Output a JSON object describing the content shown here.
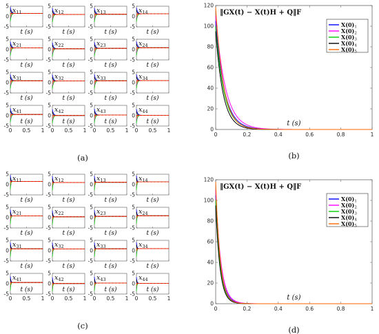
{
  "panels": [
    {
      "caption": "(a)",
      "chart_data": {
        "type": "line",
        "layout": "4x4 small multiples",
        "subplot_labels": [
          [
            "x11",
            "x12",
            "x13",
            "x14"
          ],
          [
            "x21",
            "x22",
            "x23",
            "x24"
          ],
          [
            "x31",
            "x32",
            "x33",
            "x34"
          ],
          [
            "x41",
            "x42",
            "x43",
            "x44"
          ]
        ],
        "xlabel": "t (s)",
        "xlim": [
          0,
          1
        ],
        "ylim": [
          -5,
          5
        ],
        "x_ticks": [
          "0",
          "0.5",
          "1"
        ],
        "y_ticks": [
          "5",
          "0",
          "-5"
        ],
        "subplot_final_value": [
          [
            1.5,
            1.0,
            1.1,
            1.3
          ],
          [
            0.8,
            0.4,
            0.6,
            0.9
          ],
          [
            0.9,
            0.8,
            0.9,
            1.0
          ],
          [
            0.6,
            0.1,
            0.3,
            0.2
          ]
        ],
        "series_colors": [
          "#0000ff",
          "#ff00ff",
          "#00cc00",
          "#000000",
          "#ff6600"
        ],
        "reference_color": "#ff0000",
        "decay_rate": 30
      }
    },
    {
      "caption": "(b)",
      "chart_data": {
        "type": "line",
        "title": "‖GX(t) − X(t)H + Q‖F",
        "xlabel": "t (s)",
        "xlim": [
          0,
          1
        ],
        "ylim": [
          0,
          120
        ],
        "x_ticks": [
          "0",
          "0.2",
          "0.4",
          "0.6",
          "0.8",
          "1"
        ],
        "y_ticks": [
          "0",
          "20",
          "40",
          "60",
          "80",
          "100",
          "120"
        ],
        "legend_position": "top-right",
        "series": [
          {
            "name": "X(0)1",
            "color": "#0000ff",
            "start": 105,
            "rate": 18
          },
          {
            "name": "X(0)2",
            "color": "#ff00ff",
            "start": 110,
            "rate": 16
          },
          {
            "name": "X(0)3",
            "color": "#00cc00",
            "start": 100,
            "rate": 19
          },
          {
            "name": "X(0)4",
            "color": "#000000",
            "start": 95,
            "rate": 21
          },
          {
            "name": "X(0)5",
            "color": "#ff6600",
            "start": 118,
            "rate": 20
          }
        ]
      }
    },
    {
      "caption": "(c)",
      "chart_data": {
        "type": "line",
        "layout": "4x4 small multiples",
        "subplot_labels": [
          [
            "x11",
            "x12",
            "x13",
            "x14"
          ],
          [
            "x21",
            "x22",
            "x23",
            "x24"
          ],
          [
            "x31",
            "x32",
            "x33",
            "x34"
          ],
          [
            "x41",
            "x42",
            "x43",
            "x44"
          ]
        ],
        "xlabel": "t (s)",
        "xlim": [
          0,
          1
        ],
        "ylim": [
          -5,
          5
        ],
        "x_ticks": [
          "0",
          "0.5",
          "1"
        ],
        "y_ticks": [
          "5",
          "0",
          "-5"
        ],
        "subplot_final_value": [
          [
            1.5,
            1.0,
            1.1,
            1.3
          ],
          [
            0.8,
            0.4,
            0.6,
            0.9
          ],
          [
            0.9,
            0.8,
            0.9,
            1.0
          ],
          [
            0.6,
            0.1,
            0.3,
            0.2
          ]
        ],
        "series_colors": [
          "#0000ff",
          "#ff00ff",
          "#00cc00",
          "#000000",
          "#ff6600"
        ],
        "reference_color": "#ff0000",
        "decay_rate": 60
      }
    },
    {
      "caption": "(d)",
      "chart_data": {
        "type": "line",
        "title": "‖GX(t) − X(t)H + Q‖F",
        "xlabel": "t (s)",
        "xlim": [
          0,
          1
        ],
        "ylim": [
          0,
          120
        ],
        "x_ticks": [
          "0",
          "0.2",
          "0.4",
          "0.6",
          "0.8",
          "1"
        ],
        "y_ticks": [
          "0",
          "20",
          "40",
          "60",
          "80",
          "100",
          "120"
        ],
        "legend_position": "top-right",
        "series": [
          {
            "name": "X(0)1",
            "color": "#0000ff",
            "start": 105,
            "rate": 32
          },
          {
            "name": "X(0)2",
            "color": "#ff00ff",
            "start": 110,
            "rate": 30
          },
          {
            "name": "X(0)3",
            "color": "#00cc00",
            "start": 100,
            "rate": 34
          },
          {
            "name": "X(0)4",
            "color": "#000000",
            "start": 95,
            "rate": 36
          },
          {
            "name": "X(0)5",
            "color": "#ff6600",
            "start": 118,
            "rate": 35
          }
        ]
      }
    }
  ]
}
